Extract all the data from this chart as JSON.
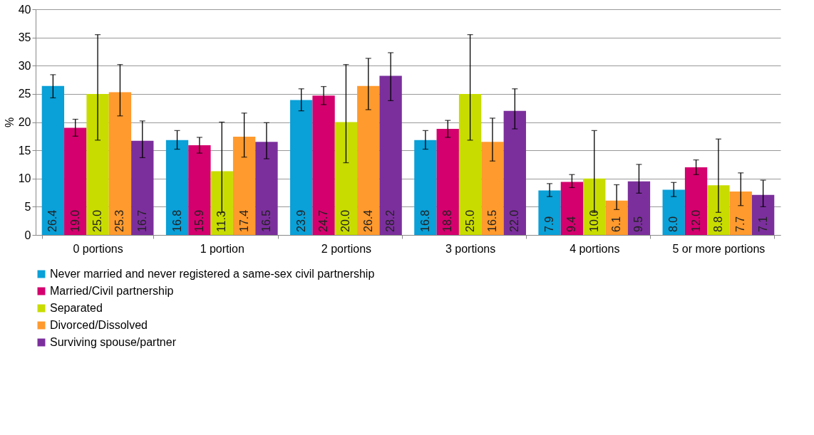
{
  "chart_data": {
    "type": "bar",
    "ylabel": "%",
    "categories": [
      "0 portions",
      "1 portion",
      "2 portions",
      "3 portions",
      "4 portions",
      "5 or more portions"
    ],
    "ylim": [
      0,
      40
    ],
    "yticks": [
      0,
      5,
      10,
      15,
      20,
      25,
      30,
      35,
      40
    ],
    "grid": "y",
    "legend": "bottom",
    "series": [
      {
        "name": "Never married and never registered a same-sex civil partnership",
        "color": "#0aa0d8",
        "values": [
          26.4,
          16.8,
          23.9,
          16.8,
          7.9,
          8.0
        ],
        "value_labels": [
          "26.4",
          "16.8",
          "23.9",
          "16.8",
          "7.9",
          "8.0"
        ],
        "errors": [
          [
            24.3,
            28.4
          ],
          [
            15.2,
            18.5
          ],
          [
            22.0,
            25.9
          ],
          [
            15.2,
            18.5
          ],
          [
            6.8,
            9.1
          ],
          [
            6.8,
            9.3
          ]
        ]
      },
      {
        "name": "Married/Civil partnership",
        "color": "#d4006e",
        "values": [
          19.0,
          15.9,
          24.7,
          18.8,
          9.4,
          12.0
        ],
        "value_labels": [
          "19.0",
          "15.9",
          "24.7",
          "18.8",
          "9.4",
          "12.0"
        ],
        "errors": [
          [
            17.5,
            20.5
          ],
          [
            14.5,
            17.3
          ],
          [
            23.1,
            26.3
          ],
          [
            17.3,
            20.3
          ],
          [
            8.4,
            10.7
          ],
          [
            10.7,
            13.3
          ]
        ]
      },
      {
        "name": "Separated",
        "color": "#c8dc00",
        "values": [
          25.0,
          11.3,
          20.0,
          25.0,
          10.0,
          8.8
        ],
        "value_labels": [
          "25.0",
          "11.3",
          "20.0",
          "25.0",
          "10.0",
          "8.8"
        ],
        "errors": [
          [
            16.8,
            35.5
          ],
          [
            4.0,
            20.0
          ],
          [
            12.8,
            30.2
          ],
          [
            16.8,
            35.5
          ],
          [
            4.0,
            18.5
          ],
          [
            4.0,
            17.0
          ]
        ]
      },
      {
        "name": "Divorced/Dissolved",
        "color": "#ff9a2e",
        "values": [
          25.3,
          17.4,
          26.4,
          16.5,
          6.1,
          7.7
        ],
        "value_labels": [
          "25.3",
          "17.4",
          "26.4",
          "16.5",
          "6.1",
          "7.7"
        ],
        "errors": [
          [
            21.1,
            30.2
          ],
          [
            13.8,
            21.6
          ],
          [
            22.2,
            31.3
          ],
          [
            13.1,
            20.7
          ],
          [
            4.5,
            8.9
          ],
          [
            5.2,
            11.0
          ]
        ]
      },
      {
        "name": "Surviving spouse/partner",
        "color": "#7b2f9c",
        "values": [
          16.7,
          16.5,
          28.2,
          22.0,
          9.5,
          7.1
        ],
        "value_labels": [
          "16.7",
          "16.5",
          "28.2",
          "22.0",
          "9.5",
          "7.1"
        ],
        "errors": [
          [
            13.7,
            20.2
          ],
          [
            13.5,
            19.9
          ],
          [
            23.8,
            32.3
          ],
          [
            18.8,
            25.9
          ],
          [
            7.4,
            12.5
          ],
          [
            5.0,
            9.7
          ]
        ]
      }
    ]
  }
}
